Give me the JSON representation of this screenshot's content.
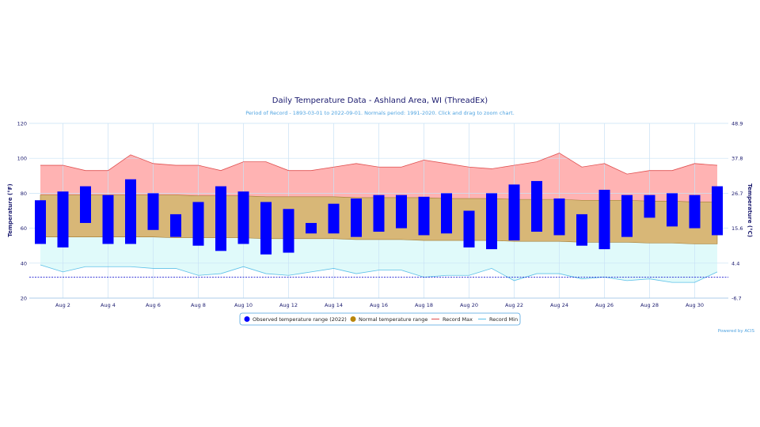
{
  "chart_data": {
    "type": "bar",
    "title": "Daily Temperature Data - Ashland Area, WI (ThreadEx)",
    "subtitle": "Period of Record - 1893-03-01 to 2022-09-01. Normals period: 1991-2020. Click and drag to zoom chart.",
    "ylabel": "Temperature (°F)",
    "ylabel_right": "Temperature (°C)",
    "ylim": [
      20,
      120
    ],
    "yticks": [
      "20",
      "40",
      "60",
      "80",
      "100",
      "120"
    ],
    "yticks_right": [
      "-6.7",
      "4.4",
      "15.6",
      "26.7",
      "37.8",
      "48.9"
    ],
    "xticks": [
      "Aug 2",
      "Aug 4",
      "Aug 6",
      "Aug 8",
      "Aug 10",
      "Aug 12",
      "Aug 14",
      "Aug 16",
      "Aug 18",
      "Aug 20",
      "Aug 22",
      "Aug 24",
      "Aug 26",
      "Aug 28",
      "Aug 30"
    ],
    "xtick_days": [
      2,
      4,
      6,
      8,
      10,
      12,
      14,
      16,
      18,
      20,
      22,
      24,
      26,
      28,
      30
    ],
    "days": [
      1,
      2,
      3,
      4,
      5,
      6,
      7,
      8,
      9,
      10,
      11,
      12,
      13,
      14,
      15,
      16,
      17,
      18,
      19,
      20,
      21,
      22,
      23,
      24,
      25,
      26,
      27,
      28,
      29,
      30,
      31
    ],
    "series": [
      {
        "name": "Observed temperature range (2022)",
        "color": "#0000ff",
        "high": [
          76,
          81,
          84,
          79,
          88,
          80,
          68,
          75,
          84,
          81,
          75,
          71,
          63,
          74,
          77,
          79,
          79,
          78,
          80,
          70,
          80,
          85,
          87,
          77,
          68,
          82,
          79,
          79,
          80,
          79,
          84
        ],
        "low": [
          51,
          49,
          63,
          51,
          51,
          59,
          55,
          50,
          47,
          51,
          45,
          46,
          57,
          57,
          55,
          58,
          60,
          56,
          57,
          49,
          48,
          53,
          58,
          56,
          50,
          48,
          55,
          66,
          61,
          60,
          56
        ]
      },
      {
        "name": "Normal temperature range",
        "color": "#b8860b",
        "high": [
          79,
          79,
          79,
          79,
          79,
          79,
          79,
          78.5,
          78.5,
          78.5,
          78,
          78,
          78,
          78,
          77.5,
          77.5,
          77.5,
          77.5,
          77,
          77,
          77,
          76.5,
          76.5,
          76.5,
          76,
          76,
          76,
          75.5,
          75.5,
          75,
          75
        ],
        "low": [
          55,
          55,
          55,
          55,
          55,
          55,
          54.5,
          54.5,
          54.5,
          54.5,
          54,
          54,
          54,
          54,
          53.5,
          53.5,
          53.5,
          53,
          53,
          53,
          53,
          52.5,
          52.5,
          52.5,
          52,
          52,
          52,
          51.5,
          51.5,
          51,
          51
        ]
      },
      {
        "name": "Record Max",
        "color": "#e05050",
        "values": [
          96,
          96,
          93,
          93,
          102,
          97,
          96,
          96,
          93,
          98,
          98,
          93,
          93,
          95,
          97,
          95,
          95,
          99,
          97,
          95,
          94,
          96,
          98,
          103,
          95,
          97,
          91,
          93,
          93,
          97,
          96
        ]
      },
      {
        "name": "Record Min",
        "color": "#5bc0e8",
        "values": [
          39,
          35,
          38,
          38,
          38,
          37,
          37,
          33,
          34,
          38,
          34,
          33,
          35,
          37,
          34,
          36,
          36,
          32,
          33,
          33,
          37,
          30,
          34,
          34,
          31,
          32,
          30,
          31,
          29,
          29,
          35
        ]
      }
    ],
    "dotted_line_value": 32,
    "legend_position": "bottom-center",
    "grid": true
  },
  "legend": {
    "observed": "Observed temperature range (2022)",
    "normal": "Normal temperature range",
    "record_max": "Record Max",
    "record_min": "Record Min"
  },
  "credits": "Powered by ACIS",
  "colors": {
    "record_band": "#ffb3b3",
    "normal_band": "#d8b777",
    "min_band": "#e0fafa",
    "grid": "#c9e2f5",
    "freezing": "#0000cc"
  }
}
